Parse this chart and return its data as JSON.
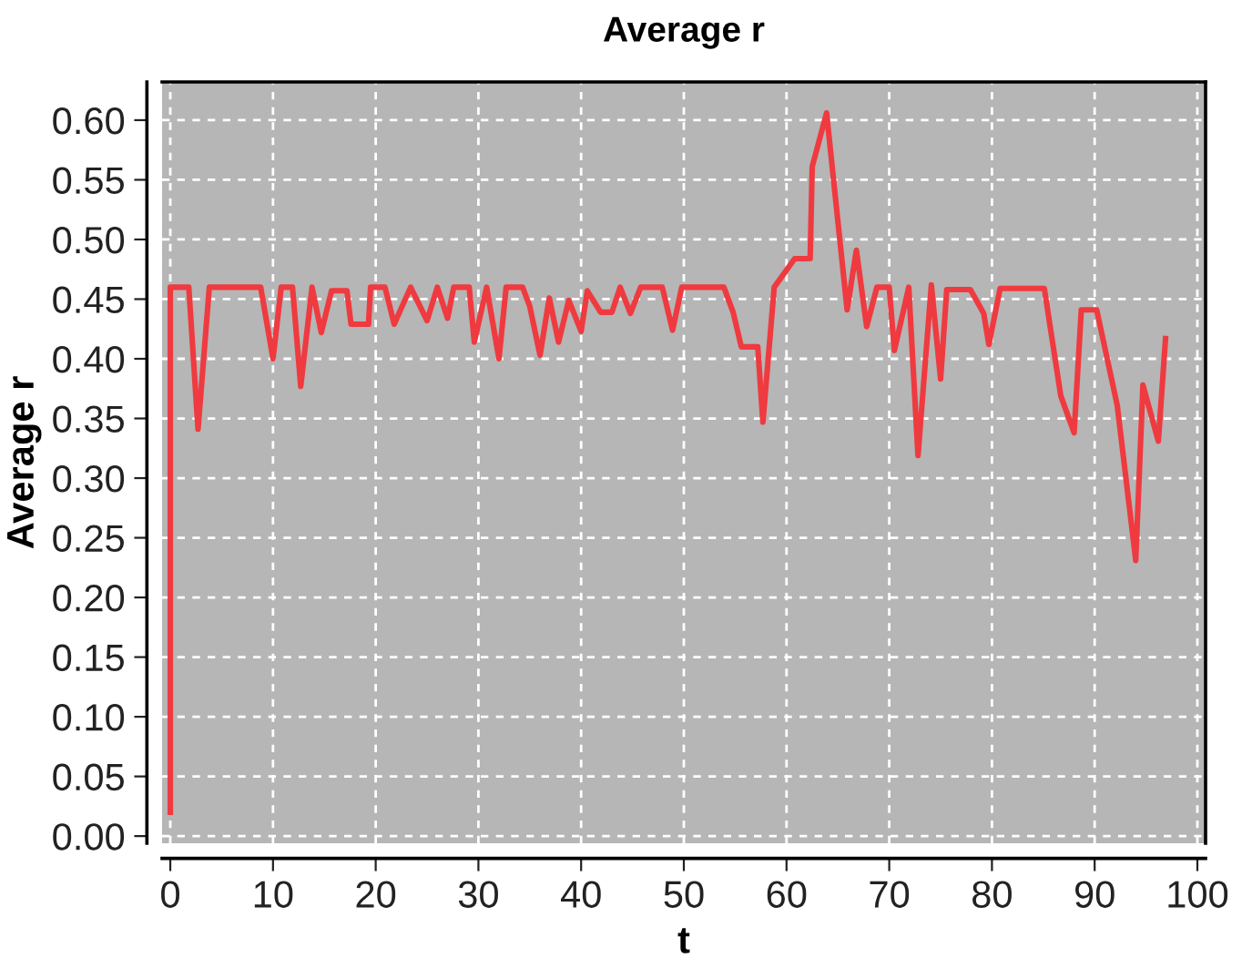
{
  "chart_data": {
    "type": "line",
    "title": "Average r",
    "xlabel": "t",
    "ylabel": "Average r",
    "x": [
      0,
      0,
      1.8,
      2.7,
      3.8,
      8.8,
      10,
      10.8,
      11.9,
      12.7,
      13.8,
      14.7,
      15.7,
      17.2,
      17.6,
      19.3,
      19.5,
      20.9,
      21.8,
      23.4,
      25,
      26,
      27,
      27.6,
      29.1,
      29.6,
      30.8,
      32,
      32.7,
      34.3,
      35,
      36,
      36.9,
      37.8,
      38.8,
      40,
      40.6,
      41.9,
      43,
      43.8,
      44.8,
      45.8,
      47.9,
      48.9,
      49.8,
      53.9,
      54.8,
      55.6,
      57.2,
      57.7,
      58.8,
      60.8,
      62.3,
      62.5,
      63.9,
      65.9,
      66.8,
      67.8,
      68.8,
      70,
      70.5,
      71.9,
      72.8,
      74.1,
      75,
      75.6,
      77.9,
      79.2,
      79.7,
      80.8,
      85.1,
      86.7,
      88,
      88.7,
      90.2,
      92.2,
      94,
      94.7,
      96.2,
      96.9
    ],
    "series": [
      {
        "color": "#ef3a40",
        "values": [
          0.02,
          0.46,
          0.46,
          0.341,
          0.46,
          0.46,
          0.4,
          0.46,
          0.46,
          0.377,
          0.46,
          0.422,
          0.457,
          0.457,
          0.429,
          0.429,
          0.46,
          0.46,
          0.429,
          0.46,
          0.432,
          0.46,
          0.434,
          0.46,
          0.46,
          0.414,
          0.46,
          0.4,
          0.46,
          0.46,
          0.444,
          0.403,
          0.451,
          0.414,
          0.449,
          0.423,
          0.457,
          0.439,
          0.439,
          0.46,
          0.438,
          0.46,
          0.46,
          0.424,
          0.46,
          0.46,
          0.439,
          0.41,
          0.41,
          0.347,
          0.46,
          0.484,
          0.484,
          0.561,
          0.606,
          0.441,
          0.491,
          0.427,
          0.46,
          0.46,
          0.407,
          0.46,
          0.319,
          0.462,
          0.383,
          0.458,
          0.458,
          0.438,
          0.412,
          0.459,
          0.459,
          0.369,
          0.338,
          0.441,
          0.441,
          0.361,
          0.231,
          0.378,
          0.331,
          0.417
        ]
      }
    ],
    "xlim": [
      -0.8,
      100.8
    ],
    "ylim": [
      -0.006,
      0.632
    ],
    "xticks": [
      0,
      10,
      20,
      30,
      40,
      50,
      60,
      70,
      80,
      90,
      100
    ],
    "yticks": [
      {
        "value": 0,
        "label": "0.00"
      },
      {
        "value": 0.05,
        "label": "0.05"
      },
      {
        "value": 0.1,
        "label": "0.10"
      },
      {
        "value": 0.15,
        "label": "0.15"
      },
      {
        "value": 0.2,
        "label": "0.20"
      },
      {
        "value": 0.25,
        "label": "0.25"
      },
      {
        "value": 0.3,
        "label": "0.30"
      },
      {
        "value": 0.35,
        "label": "0.35"
      },
      {
        "value": 0.4,
        "label": "0.40"
      },
      {
        "value": 0.45,
        "label": "0.45"
      },
      {
        "value": 0.5,
        "label": "0.50"
      },
      {
        "value": 0.55,
        "label": "0.55"
      },
      {
        "value": 0.6,
        "label": "0.60"
      }
    ],
    "grid": true,
    "line_style": "solid",
    "marker": "none",
    "legend": false
  }
}
